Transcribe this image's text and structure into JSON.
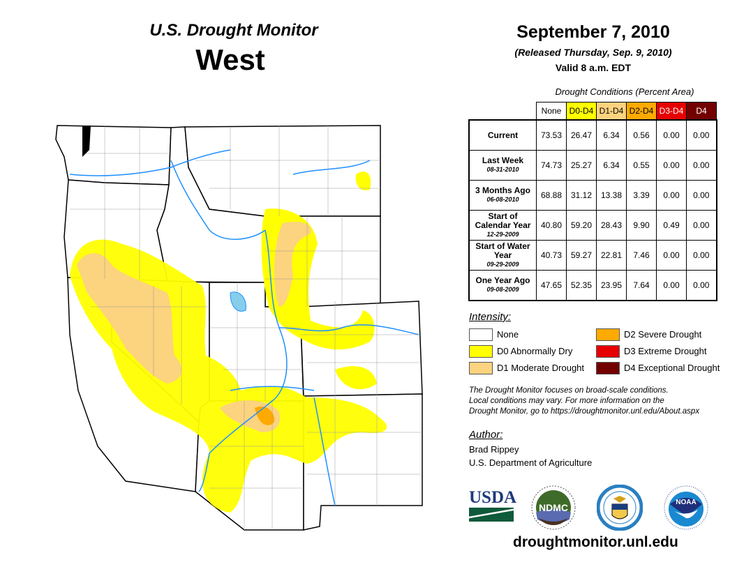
{
  "header": {
    "title": "U.S. Drought Monitor",
    "region": "West",
    "date": "September 7, 2010",
    "released": "(Released Thursday, Sep. 9, 2010)",
    "valid": "Valid 8 a.m. EDT"
  },
  "table": {
    "caption": "Drought Conditions (Percent Area)",
    "columns": [
      "None",
      "D0-D4",
      "D1-D4",
      "D2-D4",
      "D3-D4",
      "D4"
    ],
    "column_colors": [
      "#ffffff",
      "#ffff00",
      "#fcd37f",
      "#ffaa00",
      "#e60000",
      "#730000"
    ],
    "rows": [
      {
        "label": "Current",
        "date": "",
        "values": [
          "73.53",
          "26.47",
          "6.34",
          "0.56",
          "0.00",
          "0.00"
        ]
      },
      {
        "label": "Last Week",
        "date": "08-31-2010",
        "values": [
          "74.73",
          "25.27",
          "6.34",
          "0.55",
          "0.00",
          "0.00"
        ]
      },
      {
        "label": "3 Months Ago",
        "date": "06-08-2010",
        "values": [
          "68.88",
          "31.12",
          "13.38",
          "3.39",
          "0.00",
          "0.00"
        ]
      },
      {
        "label": "Start of Calendar Year",
        "date": "12-29-2009",
        "values": [
          "40.80",
          "59.20",
          "28.43",
          "9.90",
          "0.49",
          "0.00"
        ]
      },
      {
        "label": "Start of Water Year",
        "date": "09-29-2009",
        "values": [
          "40.73",
          "59.27",
          "22.81",
          "7.46",
          "0.00",
          "0.00"
        ]
      },
      {
        "label": "One Year Ago",
        "date": "09-08-2009",
        "values": [
          "47.65",
          "52.35",
          "23.95",
          "7.64",
          "0.00",
          "0.00"
        ]
      }
    ]
  },
  "legend": {
    "title": "Intensity:",
    "items": [
      {
        "label": "None",
        "color": "#ffffff"
      },
      {
        "label": "D0 Abnormally Dry",
        "color": "#ffff00"
      },
      {
        "label": "D1 Moderate Drought",
        "color": "#fcd37f"
      },
      {
        "label": "D2 Severe Drought",
        "color": "#ffaa00"
      },
      {
        "label": "D3 Extreme Drought",
        "color": "#e60000"
      },
      {
        "label": "D4 Exceptional Drought",
        "color": "#730000"
      }
    ]
  },
  "note": [
    "The Drought Monitor focuses on broad-scale conditions.",
    "Local conditions may vary. For more information on the",
    "Drought Monitor, go to https://droughtmonitor.unl.edu/About.aspx"
  ],
  "author": {
    "title": "Author:",
    "name": "Brad Rippey",
    "org": "U.S. Department of Agriculture"
  },
  "logos": {
    "usda": "USDA",
    "ndmc": "NDMC",
    "noaa": "NOAA"
  },
  "footer_url": "droughtmonitor.unl.edu"
}
